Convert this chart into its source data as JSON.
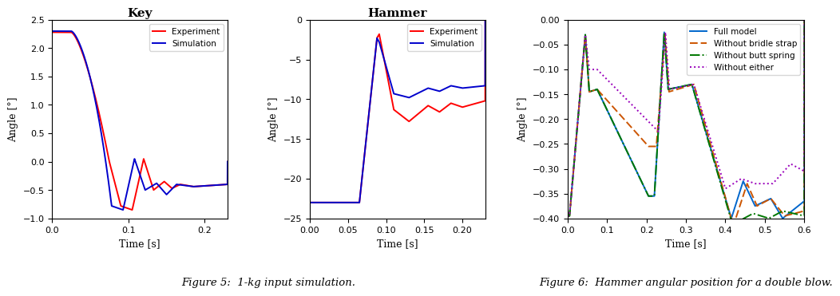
{
  "fig1_title": "Key",
  "fig2_title": "Hammer",
  "fig1_xlabel": "Time [s]",
  "fig1_ylabel": "Angle [°]",
  "fig2_xlabel": "Time [s]",
  "fig2_ylabel": "Angle [°]",
  "fig3_xlabel": "Time [s]",
  "fig3_ylabel": "Angle [°]",
  "fig1_xlim": [
    0,
    0.23
  ],
  "fig1_ylim": [
    -1,
    2.5
  ],
  "fig2_xlim": [
    0,
    0.23
  ],
  "fig2_ylim": [
    -25,
    0
  ],
  "fig3_xlim": [
    0,
    0.6
  ],
  "fig3_ylim": [
    -0.4,
    0.0
  ],
  "caption1": "Figure 5:  1-kg input simulation.",
  "caption2": "Figure 6:  Hammer angular position for a double blow.",
  "exp_color": "#ff0000",
  "sim_color": "#0000cc",
  "full_color": "#0066cc",
  "bridle_color": "#cc5500",
  "butt_color": "#007700",
  "either_color": "#9900bb",
  "legend1_labels": [
    "Experiment",
    "Simulation"
  ],
  "legend3_labels": [
    "Full model",
    "Without bridle strap",
    "Without butt spring",
    "Without either"
  ],
  "fig1_xticks": [
    0,
    0.1,
    0.2
  ],
  "fig1_yticks": [
    -1,
    -0.5,
    0,
    0.5,
    1,
    1.5,
    2,
    2.5
  ],
  "fig2_xticks": [
    0,
    0.05,
    0.1,
    0.15,
    0.2
  ],
  "fig2_yticks": [
    -25,
    -20,
    -15,
    -10,
    -5,
    0
  ],
  "fig3_xticks": [
    0,
    0.1,
    0.2,
    0.3,
    0.4,
    0.5,
    0.6
  ],
  "fig3_yticks": [
    -0.4,
    -0.35,
    -0.3,
    -0.25,
    -0.2,
    -0.15,
    -0.1,
    -0.05,
    0
  ]
}
